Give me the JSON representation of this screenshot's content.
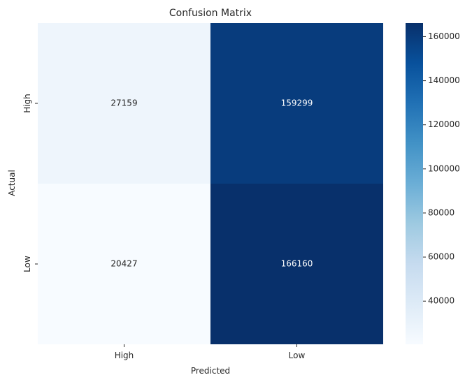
{
  "chart_data": {
    "type": "heatmap",
    "title": "Confusion Matrix",
    "xlabel": "Predicted",
    "ylabel": "Actual",
    "x_categories": [
      "High",
      "Low"
    ],
    "y_categories": [
      "High",
      "Low"
    ],
    "values": [
      [
        27159,
        159299
      ],
      [
        20427,
        166160
      ]
    ],
    "colormap": "Blues",
    "colorbar": {
      "min": 20427,
      "max": 166160,
      "ticks": [
        40000,
        60000,
        80000,
        100000,
        120000,
        140000,
        160000
      ],
      "tick_labels": [
        "40000",
        "60000",
        "80000",
        "100000",
        "120000",
        "140000",
        "160000"
      ]
    }
  }
}
